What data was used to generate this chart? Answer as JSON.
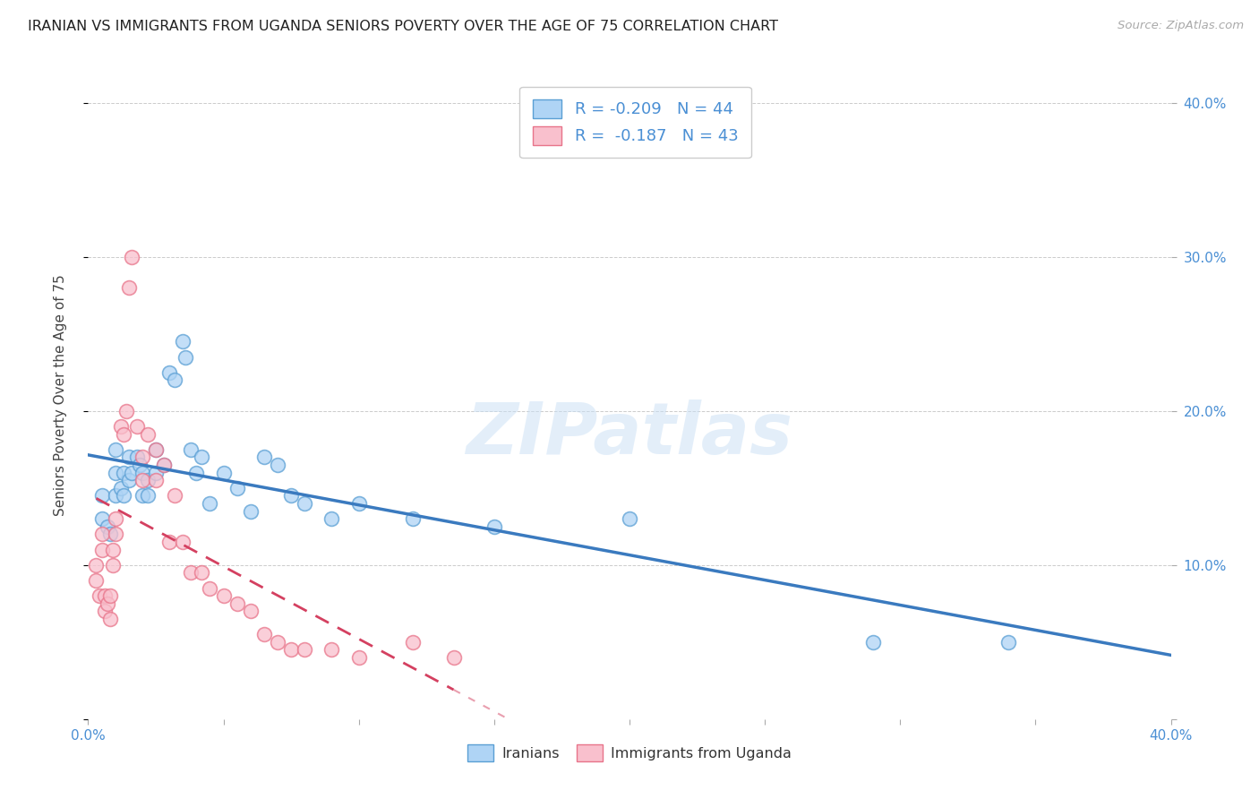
{
  "title": "IRANIAN VS IMMIGRANTS FROM UGANDA SENIORS POVERTY OVER THE AGE OF 75 CORRELATION CHART",
  "source": "Source: ZipAtlas.com",
  "ylabel": "Seniors Poverty Over the Age of 75",
  "xlim": [
    0.0,
    0.4
  ],
  "ylim": [
    0.0,
    0.42
  ],
  "iranians_R": -0.209,
  "iranians_N": 44,
  "uganda_R": -0.187,
  "uganda_N": 43,
  "color_iranians_fill": "#afd4f5",
  "color_iranians_edge": "#5a9fd4",
  "color_uganda_fill": "#f9c0cd",
  "color_uganda_edge": "#e8748a",
  "color_iranians_line": "#3a7abf",
  "color_uganda_line": "#d44060",
  "iranians_x": [
    0.005,
    0.005,
    0.007,
    0.008,
    0.01,
    0.01,
    0.01,
    0.012,
    0.013,
    0.013,
    0.015,
    0.015,
    0.016,
    0.018,
    0.019,
    0.02,
    0.02,
    0.022,
    0.022,
    0.025,
    0.025,
    0.028,
    0.03,
    0.032,
    0.035,
    0.036,
    0.038,
    0.04,
    0.042,
    0.045,
    0.05,
    0.055,
    0.06,
    0.065,
    0.07,
    0.075,
    0.08,
    0.09,
    0.1,
    0.12,
    0.15,
    0.2,
    0.29,
    0.34
  ],
  "iranians_y": [
    0.145,
    0.13,
    0.125,
    0.12,
    0.175,
    0.16,
    0.145,
    0.15,
    0.16,
    0.145,
    0.17,
    0.155,
    0.16,
    0.17,
    0.165,
    0.16,
    0.145,
    0.155,
    0.145,
    0.175,
    0.16,
    0.165,
    0.225,
    0.22,
    0.245,
    0.235,
    0.175,
    0.16,
    0.17,
    0.14,
    0.16,
    0.15,
    0.135,
    0.17,
    0.165,
    0.145,
    0.14,
    0.13,
    0.14,
    0.13,
    0.125,
    0.13,
    0.05,
    0.05
  ],
  "uganda_x": [
    0.003,
    0.003,
    0.004,
    0.005,
    0.005,
    0.006,
    0.006,
    0.007,
    0.008,
    0.008,
    0.009,
    0.009,
    0.01,
    0.01,
    0.012,
    0.013,
    0.014,
    0.015,
    0.016,
    0.018,
    0.02,
    0.02,
    0.022,
    0.025,
    0.025,
    0.028,
    0.03,
    0.032,
    0.035,
    0.038,
    0.042,
    0.045,
    0.05,
    0.055,
    0.06,
    0.065,
    0.07,
    0.075,
    0.08,
    0.09,
    0.1,
    0.12,
    0.135
  ],
  "uganda_y": [
    0.1,
    0.09,
    0.08,
    0.12,
    0.11,
    0.08,
    0.07,
    0.075,
    0.08,
    0.065,
    0.11,
    0.1,
    0.13,
    0.12,
    0.19,
    0.185,
    0.2,
    0.28,
    0.3,
    0.19,
    0.17,
    0.155,
    0.185,
    0.175,
    0.155,
    0.165,
    0.115,
    0.145,
    0.115,
    0.095,
    0.095,
    0.085,
    0.08,
    0.075,
    0.07,
    0.055,
    0.05,
    0.045,
    0.045,
    0.045,
    0.04,
    0.05,
    0.04
  ],
  "title_fontsize": 11.5,
  "axis_label_fontsize": 11,
  "tick_fontsize": 11,
  "legend_fontsize": 13,
  "source_fontsize": 9.5
}
